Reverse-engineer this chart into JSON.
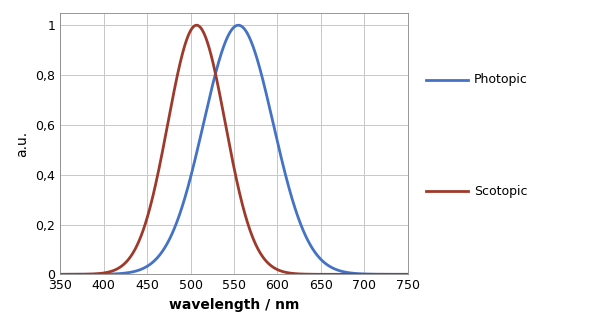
{
  "photopic_peak": 555,
  "photopic_sigma": 40,
  "scotopic_peak": 507,
  "scotopic_sigma": 33,
  "photopic_color": "#4472C4",
  "scotopic_color": "#9E3A2B",
  "photopic_label": "Photopic",
  "scotopic_label": "Scotopic",
  "xlabel": "wavelength / nm",
  "ylabel": "a.u.",
  "xlim": [
    350,
    750
  ],
  "ylim": [
    0,
    1.05
  ],
  "xticks": [
    350,
    400,
    450,
    500,
    550,
    600,
    650,
    700,
    750
  ],
  "yticks": [
    0,
    0.2,
    0.4,
    0.6,
    0.8,
    1
  ],
  "ytick_labels": [
    "0",
    "0,2",
    "0,4",
    "0,6",
    "0,8",
    "1"
  ],
  "grid_color": "#C8C8C8",
  "background_color": "#FFFFFF",
  "line_width": 2.0,
  "figsize": [
    6.0,
    3.19
  ],
  "dpi": 100
}
